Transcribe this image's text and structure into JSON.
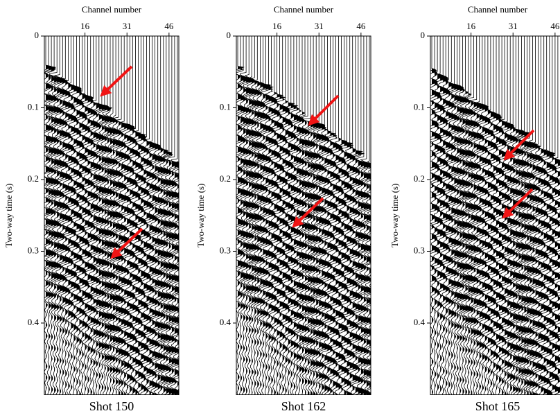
{
  "chart_data": [
    {
      "type": "seismic",
      "title": "Shot 150",
      "xlabel": "Channel number",
      "ylabel": "Two-way time (s)",
      "xlim": [
        1.5,
        49.5
      ],
      "xticks": [
        16,
        31,
        46
      ],
      "ylim": [
        0,
        0.5
      ],
      "yticks": [
        0,
        0.1,
        0.2,
        0.3,
        0.4
      ],
      "invert_y": true
    },
    {
      "type": "seismic",
      "title": "Shot 162",
      "xlabel": "Channel number",
      "ylabel": "Two-way time (s)",
      "xlim": [
        1.5,
        49.5
      ],
      "xticks": [
        16,
        31,
        46
      ],
      "ylim": [
        0,
        0.5
      ],
      "yticks": [
        0,
        0.1,
        0.2,
        0.3,
        0.4
      ],
      "invert_y": true
    },
    {
      "type": "seismic",
      "title": "Shot 165",
      "xlabel": "Channel number",
      "ylabel": "Two-way time (s)",
      "xlim": [
        1.5,
        49.5
      ],
      "xticks": [
        16,
        31,
        46
      ],
      "ylim": [
        0,
        0.5
      ],
      "yticks": [
        0,
        0.1,
        0.2,
        0.3,
        0.4
      ],
      "invert_y": true
    }
  ]
}
